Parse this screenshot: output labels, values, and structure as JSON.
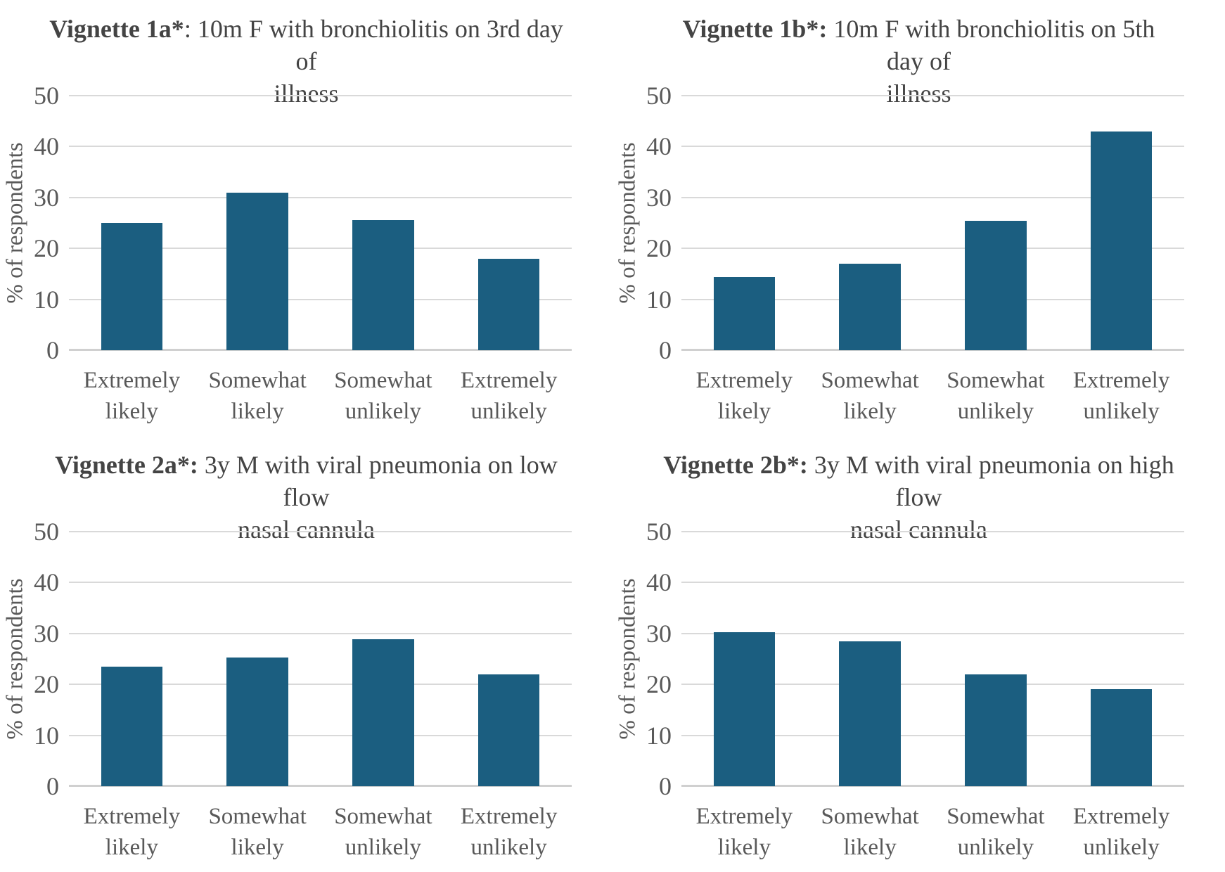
{
  "colors": {
    "bar": "#1b5e80",
    "gridline": "#d9d9d9",
    "baseline": "#d0d0d0",
    "title_text": "#444444",
    "axis_text": "#595959"
  },
  "chart_data": [
    {
      "type": "bar",
      "title": "Vignette 1a*: 10m F with bronchiolitis on 3rd day of illness",
      "title_bold": "Vignette 1a*",
      "title_rest": ": 10m F with bronchiolitis on 3rd day of\nillness",
      "categories": [
        "Extremely\nlikely",
        "Somewhat\nlikely",
        "Somewhat\nunlikely",
        "Extremely\nunlikely"
      ],
      "values": [
        25,
        31,
        25.5,
        18
      ],
      "xlabel": "",
      "ylabel": "% of respondents",
      "ylim": [
        0,
        50
      ],
      "yticks": [
        0,
        10,
        20,
        30,
        40,
        50
      ],
      "grid": "horizontal",
      "legend": "none"
    },
    {
      "type": "bar",
      "title": "Vignette 1b*: 10m F with bronchiolitis on 5th day of illness",
      "title_bold": "Vignette 1b*:",
      "title_rest": " 10m F with bronchiolitis on 5th day of\nillness",
      "categories": [
        "Extremely\nlikely",
        "Somewhat\nlikely",
        "Somewhat\nunlikely",
        "Extremely\nunlikely"
      ],
      "values": [
        14.4,
        17,
        25.4,
        43
      ],
      "xlabel": "",
      "ylabel": "% of respondents",
      "ylim": [
        0,
        50
      ],
      "yticks": [
        0,
        10,
        20,
        30,
        40,
        50
      ],
      "grid": "horizontal",
      "legend": "none"
    },
    {
      "type": "bar",
      "title": "Vignette 2a*: 3y M with viral pneumonia on low flow nasal cannula",
      "title_bold": "Vignette 2a*:",
      "title_rest": " 3y M with viral pneumonia on low flow\nnasal cannula",
      "categories": [
        "Extremely\nlikely",
        "Somewhat\nlikely",
        "Somewhat\nunlikely",
        "Extremely\nunlikely"
      ],
      "values": [
        23.5,
        25.3,
        28.9,
        22
      ],
      "xlabel": "",
      "ylabel": "% of respondents",
      "ylim": [
        0,
        50
      ],
      "yticks": [
        0,
        10,
        20,
        30,
        40,
        50
      ],
      "grid": "horizontal",
      "legend": "none"
    },
    {
      "type": "bar",
      "title": "Vignette 2b*: 3y M with viral pneumonia on high flow nasal cannula",
      "title_bold": "Vignette 2b*:",
      "title_rest": " 3y M with viral pneumonia on high flow\nnasal cannula",
      "categories": [
        "Extremely\nlikely",
        "Somewhat\nlikely",
        "Somewhat\nunlikely",
        "Extremely\nunlikely"
      ],
      "values": [
        30.3,
        28.5,
        22,
        19
      ],
      "xlabel": "",
      "ylabel": "% of respondents",
      "ylim": [
        0,
        50
      ],
      "yticks": [
        0,
        10,
        20,
        30,
        40,
        50
      ],
      "grid": "horizontal",
      "legend": "none"
    }
  ]
}
